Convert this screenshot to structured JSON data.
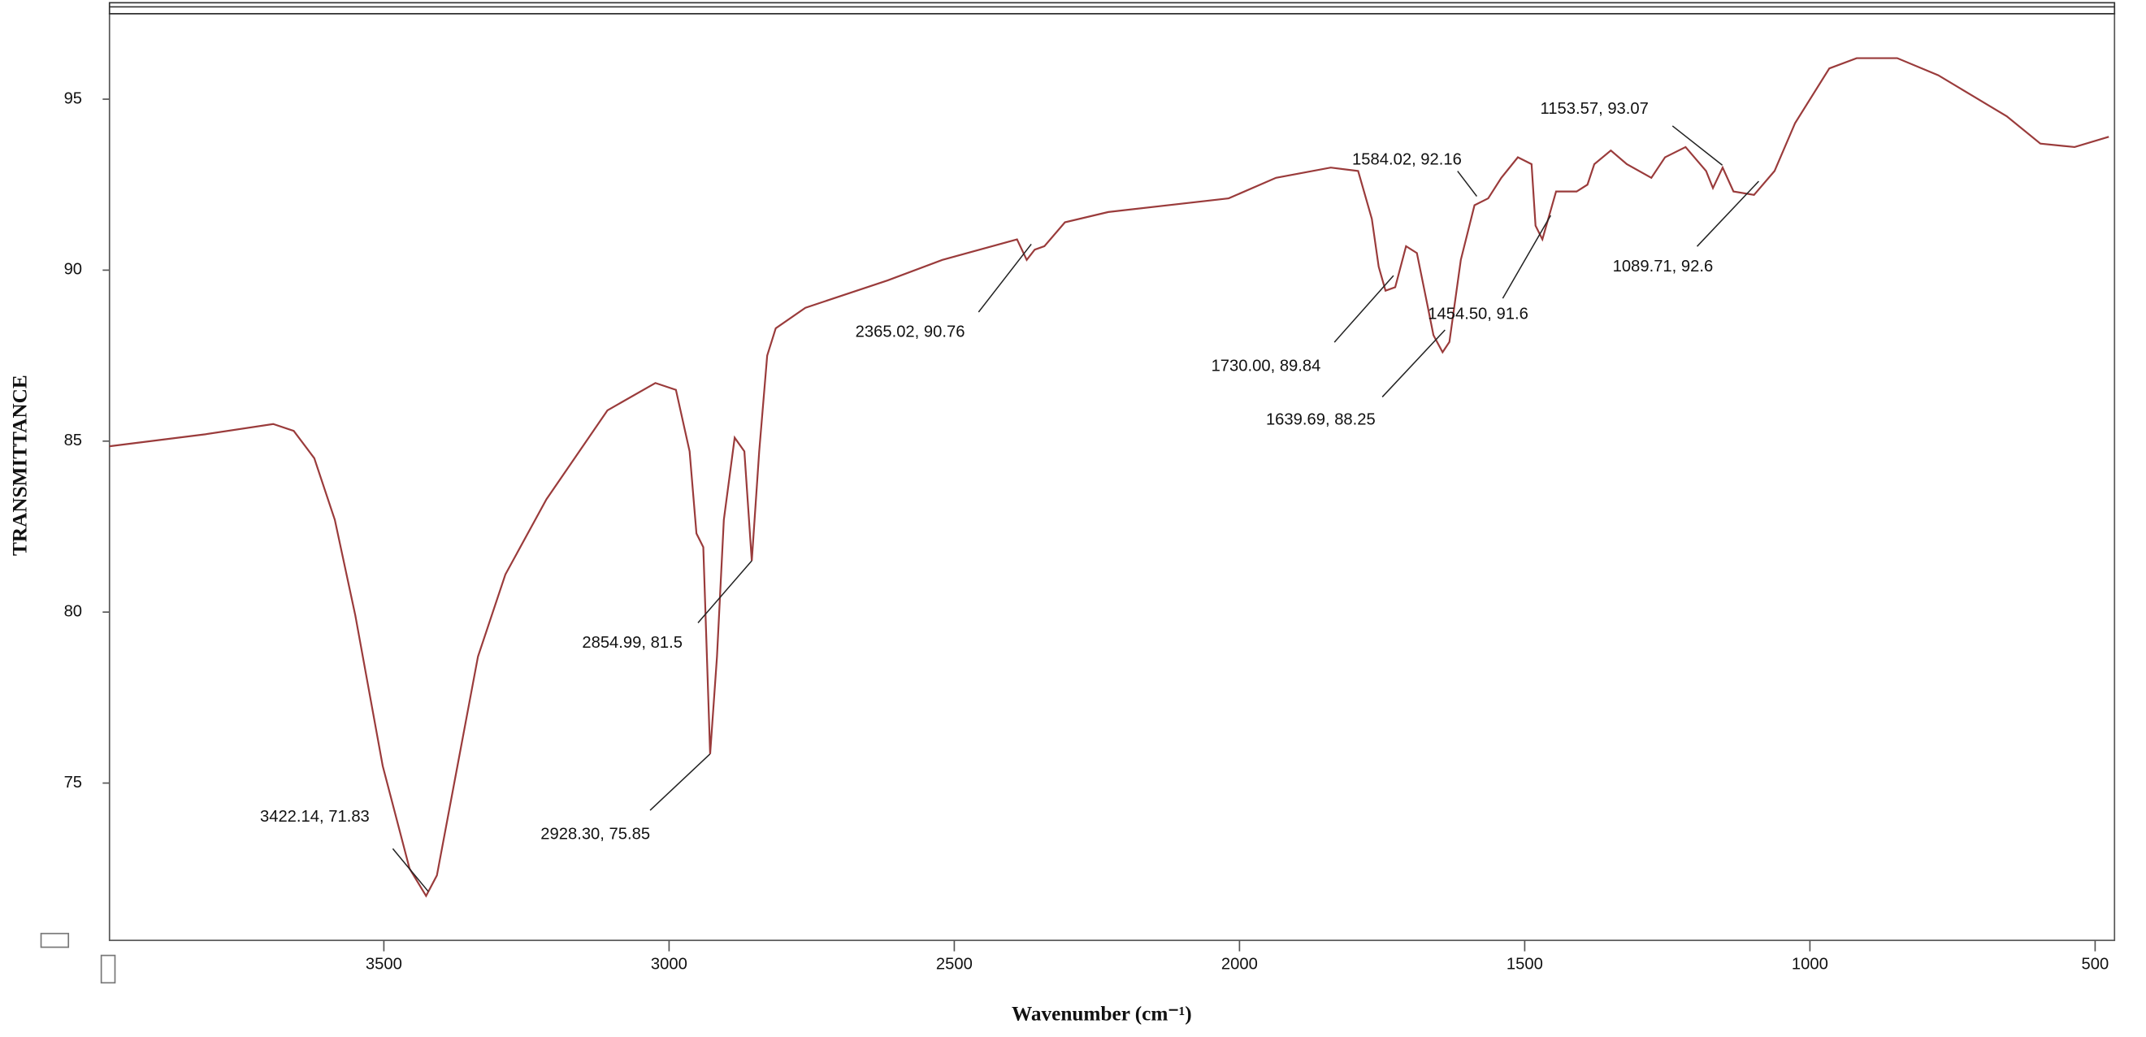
{
  "chart_data": {
    "type": "line",
    "x_label": "Wavenumber (cm⁻¹)",
    "y_label": "TRANSMITTANCE",
    "xlim": [
      3981,
      466
    ],
    "ylim": [
      70.4,
      97.5
    ],
    "xticks": [
      3500,
      3000,
      2500,
      2000,
      1500,
      1000,
      500
    ],
    "yticks": [
      75,
      80,
      85,
      90,
      95
    ],
    "grid": false,
    "series": [
      {
        "color": "#9a3b3b",
        "x": [
          3981,
          3813,
          3694,
          3658,
          3622,
          3586,
          3550,
          3502,
          3455,
          3426,
          3407,
          3371,
          3335,
          3287,
          3215,
          3108,
          3024,
          2988,
          2964,
          2952,
          2940,
          2928,
          2916,
          2904,
          2885,
          2868,
          2855,
          2842,
          2828,
          2813,
          2761,
          2617,
          2521,
          2390,
          2373,
          2359,
          2342,
          2306,
          2230,
          2019,
          1936,
          1840,
          1792,
          1768,
          1756,
          1744,
          1727,
          1708,
          1689,
          1672,
          1660,
          1644,
          1632,
          1612,
          1588,
          1564,
          1541,
          1512,
          1488,
          1481,
          1469,
          1445,
          1409,
          1390,
          1378,
          1349,
          1321,
          1278,
          1254,
          1218,
          1182,
          1170,
          1153,
          1134,
          1098,
          1062,
          1026,
          966,
          918,
          847,
          775,
          715,
          655,
          596,
          536,
          476
        ],
        "values": [
          84.85,
          85.2,
          85.5,
          85.3,
          84.5,
          82.7,
          79.9,
          75.5,
          72.5,
          71.7,
          72.3,
          75.5,
          78.7,
          81.1,
          83.3,
          85.9,
          86.7,
          86.5,
          84.7,
          82.3,
          81.9,
          75.85,
          78.7,
          82.7,
          85.1,
          84.7,
          81.5,
          84.7,
          87.5,
          88.3,
          88.9,
          89.7,
          90.3,
          90.9,
          90.3,
          90.6,
          90.7,
          91.4,
          91.7,
          92.1,
          92.7,
          93.0,
          92.9,
          91.5,
          90.1,
          89.4,
          89.5,
          90.7,
          90.5,
          89.1,
          88.1,
          87.6,
          87.9,
          90.3,
          91.9,
          92.1,
          92.7,
          93.3,
          93.1,
          91.3,
          90.9,
          92.3,
          92.3,
          92.5,
          93.1,
          93.5,
          93.1,
          92.7,
          93.3,
          93.6,
          92.9,
          92.4,
          93.0,
          92.3,
          92.2,
          92.9,
          94.3,
          95.9,
          96.2,
          96.2,
          95.7,
          95.1,
          94.5,
          93.7,
          93.6,
          93.9
        ]
      }
    ],
    "annotations": [
      {
        "text": "3422.14, 71.83",
        "x": 3422.14,
        "y": 71.83
      },
      {
        "text": "2928.30, 75.85",
        "x": 2928.3,
        "y": 75.85
      },
      {
        "text": "2854.99, 81.5",
        "x": 2854.99,
        "y": 81.5
      },
      {
        "text": "2365.02, 90.76",
        "x": 2365.02,
        "y": 90.76
      },
      {
        "text": "1730.00, 89.84",
        "x": 1730.0,
        "y": 89.84
      },
      {
        "text": "1639.69, 88.25",
        "x": 1639.69,
        "y": 88.25
      },
      {
        "text": "1454.50, 91.6",
        "x": 1454.5,
        "y": 91.6
      },
      {
        "text": "1584.02, 92.16",
        "x": 1584.02,
        "y": 92.16
      },
      {
        "text": "1153.57, 93.07",
        "x": 1153.57,
        "y": 93.07
      },
      {
        "text": "1089.71, 92.6",
        "x": 1089.71,
        "y": 92.6
      }
    ]
  }
}
